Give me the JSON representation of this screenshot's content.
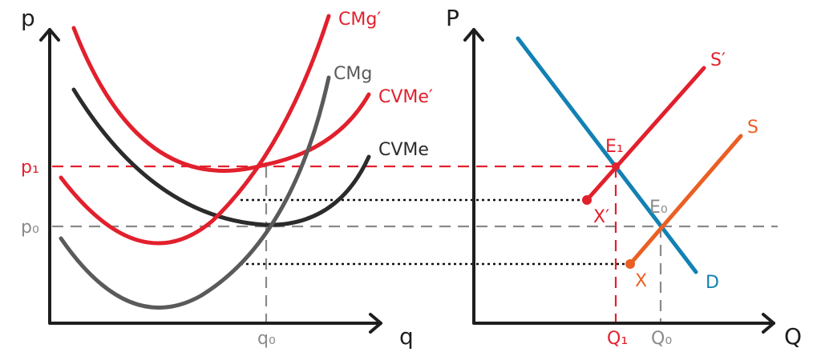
{
  "colors": {
    "red": "#e2202d",
    "dark": "#2b2b2b",
    "gray": "#5a5a5a",
    "blue": "#1281b3",
    "orange": "#ea5f23",
    "guide_gray": "#8a8a8a"
  },
  "left_panel": {
    "y_axis_label": "p",
    "x_axis_label": "q",
    "curves": {
      "cmg_prime": "CMg′",
      "cmg": "CMg",
      "cvme_prime": "CVMe′",
      "cvme": "CVMe"
    },
    "price_labels": {
      "p1": "p₁",
      "p0": "p₀"
    },
    "quantity_label": "q₀"
  },
  "right_panel": {
    "y_axis_label": "P",
    "x_axis_label": "Q",
    "curves": {
      "s_prime": "S′",
      "s": "S",
      "d": "D"
    },
    "points": {
      "e1": "E₁",
      "e0": "E₀",
      "x_prime": "X′",
      "x": "X"
    },
    "quantity_labels": {
      "q1": "Q₁",
      "q0": "Q₀"
    }
  }
}
